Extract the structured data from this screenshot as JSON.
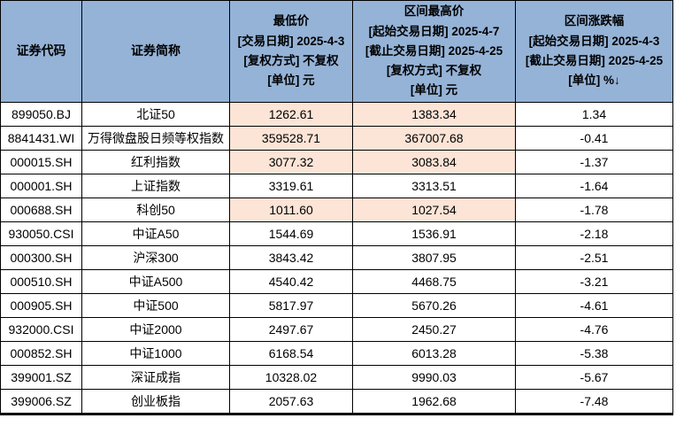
{
  "table": {
    "title": "index-price-range-table",
    "colors": {
      "header_bg": "#95B3D7",
      "highlight_bg": "#FCE4D6",
      "row_bg": "#FFFFFF",
      "border": "#000000",
      "text": "#000000"
    },
    "columns": [
      {
        "key": "code",
        "label": "证券代码"
      },
      {
        "key": "name",
        "label": "证券简称"
      },
      {
        "key": "low",
        "label": "最低价\n[交易日期] 2025-4-3\n[复权方式] 不复权\n[单位] 元"
      },
      {
        "key": "high",
        "label": "区间最高价\n[起始交易日期] 2025-4-7\n[截止交易日期] 2025-4-25\n[复权方式] 不复权\n[单位] 元"
      },
      {
        "key": "chg",
        "label": "区间涨跌幅\n[起始交易日期] 2025-4-3\n[截止交易日期] 2025-4-25\n[单位] %↓"
      }
    ],
    "sort_indicator": {
      "column": "chg",
      "direction": "descending",
      "glyph": "↓"
    },
    "rows": [
      {
        "code": "899050.BJ",
        "name": "北证50",
        "low": "1262.61",
        "high": "1383.34",
        "chg": "1.34",
        "highlight": true
      },
      {
        "code": "8841431.WI",
        "name": "万得微盘股日频等权指数",
        "low": "359528.71",
        "high": "367007.68",
        "chg": "-0.41",
        "highlight": true
      },
      {
        "code": "000015.SH",
        "name": "红利指数",
        "low": "3077.32",
        "high": "3083.84",
        "chg": "-1.37",
        "highlight": true
      },
      {
        "code": "000001.SH",
        "name": "上证指数",
        "low": "3319.61",
        "high": "3313.51",
        "chg": "-1.64",
        "highlight": false
      },
      {
        "code": "000688.SH",
        "name": "科创50",
        "low": "1011.60",
        "high": "1027.54",
        "chg": "-1.78",
        "highlight": true
      },
      {
        "code": "930050.CSI",
        "name": "中证A50",
        "low": "1544.69",
        "high": "1536.91",
        "chg": "-2.18",
        "highlight": false
      },
      {
        "code": "000300.SH",
        "name": "沪深300",
        "low": "3843.42",
        "high": "3807.95",
        "chg": "-2.51",
        "highlight": false
      },
      {
        "code": "000510.SH",
        "name": "中证A500",
        "low": "4540.42",
        "high": "4468.75",
        "chg": "-3.21",
        "highlight": false
      },
      {
        "code": "000905.SH",
        "name": "中证500",
        "low": "5817.97",
        "high": "5670.26",
        "chg": "-4.61",
        "highlight": false
      },
      {
        "code": "932000.CSI",
        "name": "中证2000",
        "low": "2497.67",
        "high": "2450.27",
        "chg": "-4.76",
        "highlight": false
      },
      {
        "code": "000852.SH",
        "name": "中证1000",
        "low": "6168.54",
        "high": "6013.28",
        "chg": "-5.38",
        "highlight": false
      },
      {
        "code": "399001.SZ",
        "name": "深证成指",
        "low": "10328.02",
        "high": "9990.03",
        "chg": "-5.67",
        "highlight": false
      },
      {
        "code": "399006.SZ",
        "name": "创业板指",
        "low": "2057.63",
        "high": "1962.68",
        "chg": "-7.48",
        "highlight": false
      }
    ]
  }
}
